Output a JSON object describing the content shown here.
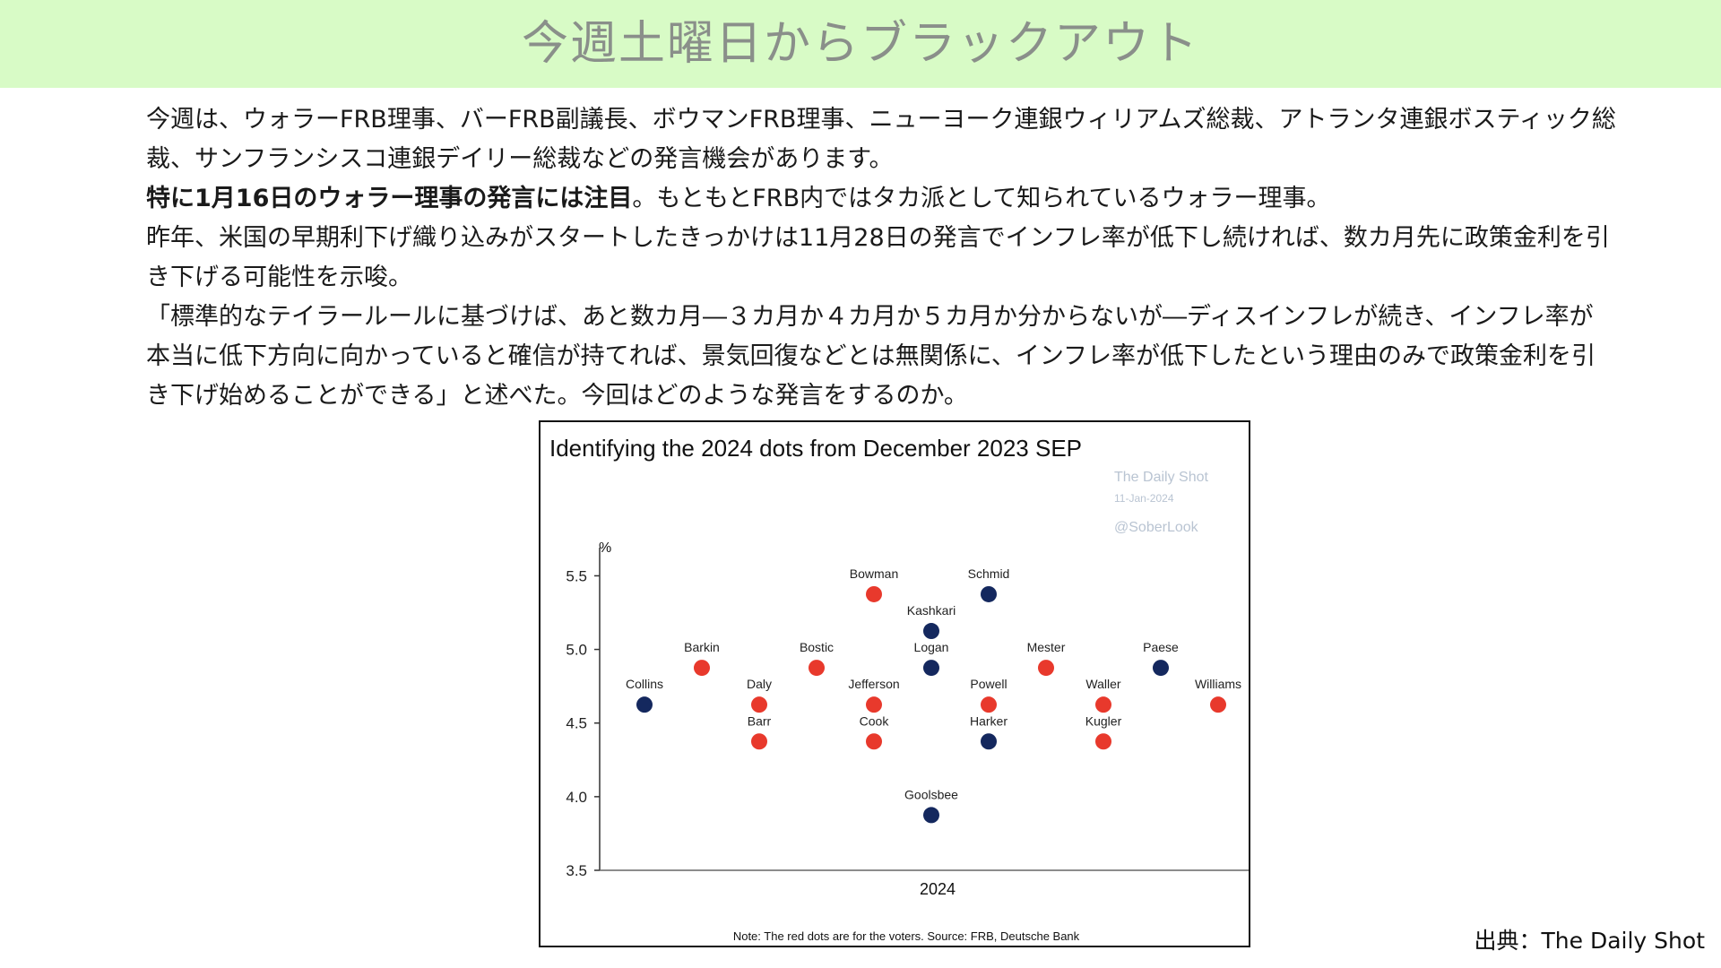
{
  "slide": {
    "title": "今週土曜日からブラックアウト",
    "para1": "今週は、ウォラーFRB理事、バーFRB副議長、ボウマンFRB理事、ニューヨーク連銀ウィリアムズ総裁、アトランタ連銀ボスティック総裁、サンフランシスコ連銀デイリー総裁などの発言機会があります。",
    "para2_bold": "特に1月16日のウォラー理事の発言には注目",
    "para2_rest": "。もともとFRB内ではタカ派として知られているウォラー理事。",
    "para3": "昨年、米国の早期利下げ織り込みがスタートしたきっかけは11月28日の発言でインフレ率が低下し続ければ、数カ月先に政策金利を引き下げる可能性を示唆。",
    "para4": "「標準的なテイラールールに基づけば、あと数カ月―３カ月か４カ月か５カ月か分からないが―ディスインフレが続き、インフレ率が本当に低下方向に向かっていると確信が持てれば、景気回復などとは無関係に、インフレ率が低下したという理由のみで政策金利を引き下げ始めることができる」と述べた。今回はどのような発言をするのか。",
    "credit": "出典：The  Daily Shot"
  },
  "chart_data": {
    "type": "scatter",
    "title": "Identifying the 2024 dots from December 2023 SEP",
    "watermark": [
      "The Daily Shot",
      "11-Jan-2024",
      "@SoberLook"
    ],
    "ylabel": "%",
    "xlabel": "2024",
    "ylim": [
      3.5,
      5.6
    ],
    "yticks": [
      "5.5",
      "5.0",
      "4.5",
      "4.0",
      "3.5"
    ],
    "note": "Note: The red dots are for the voters. Source: FRB, Deutsche Bank",
    "colors": {
      "voter": "#e8392c",
      "non_voter": "#14285e"
    },
    "points": [
      {
        "name": "Collins",
        "value": 4.625,
        "voter": false
      },
      {
        "name": "Barkin",
        "value": 4.875,
        "voter": true
      },
      {
        "name": "Daly",
        "value": 4.625,
        "voter": true
      },
      {
        "name": "Barr",
        "value": 4.375,
        "voter": true
      },
      {
        "name": "Bostic",
        "value": 4.875,
        "voter": true
      },
      {
        "name": "Bowman",
        "value": 5.375,
        "voter": true
      },
      {
        "name": "Jefferson",
        "value": 4.625,
        "voter": true
      },
      {
        "name": "Cook",
        "value": 4.375,
        "voter": true
      },
      {
        "name": "Kashkari",
        "value": 5.125,
        "voter": false
      },
      {
        "name": "Logan",
        "value": 4.875,
        "voter": false
      },
      {
        "name": "Goolsbee",
        "value": 3.875,
        "voter": false
      },
      {
        "name": "Schmid",
        "value": 5.375,
        "voter": false
      },
      {
        "name": "Powell",
        "value": 4.625,
        "voter": true
      },
      {
        "name": "Harker",
        "value": 4.375,
        "voter": false
      },
      {
        "name": "Mester",
        "value": 4.875,
        "voter": true
      },
      {
        "name": "Waller",
        "value": 4.625,
        "voter": true
      },
      {
        "name": "Kugler",
        "value": 4.375,
        "voter": true
      },
      {
        "name": "Paese",
        "value": 4.875,
        "voter": false
      },
      {
        "name": "Williams",
        "value": 4.625,
        "voter": true
      }
    ]
  }
}
